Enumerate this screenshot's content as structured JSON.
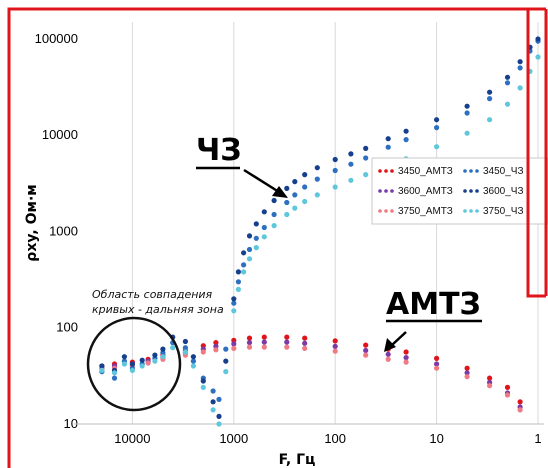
{
  "chart_data": {
    "type": "scatter",
    "xlabel": "F, Гц",
    "ylabel": "ρxy, Ом·м",
    "x_scale": "log",
    "x_reversed": true,
    "y_scale": "log",
    "xlim": [
      1,
      30000
    ],
    "ylim": [
      10,
      150000
    ],
    "x_ticks": [
      {
        "v": 10000,
        "label": "10000"
      },
      {
        "v": 1000,
        "label": "1000"
      },
      {
        "v": 100,
        "label": "100"
      },
      {
        "v": 10,
        "label": "10"
      },
      {
        "v": 1,
        "label": "1"
      }
    ],
    "y_ticks": [
      {
        "v": 100000,
        "label": "100000"
      },
      {
        "v": 10000,
        "label": "10000"
      },
      {
        "v": 1000,
        "label": "1000"
      },
      {
        "v": 100,
        "label": "100"
      },
      {
        "v": 10,
        "label": "10"
      }
    ],
    "grid": {
      "x": true,
      "y": false
    },
    "legend_position": "right",
    "series": [
      {
        "name": "3450_АМТЗ",
        "color": "#e0141b",
        "points": [
          [
            20000,
            40
          ],
          [
            15000,
            42
          ],
          [
            10000,
            44
          ],
          [
            7000,
            47
          ],
          [
            5000,
            52
          ],
          [
            3000,
            58
          ],
          [
            2000,
            65
          ],
          [
            1500,
            70
          ],
          [
            1000,
            74
          ],
          [
            700,
            78
          ],
          [
            500,
            80
          ],
          [
            300,
            80
          ],
          [
            200,
            78
          ],
          [
            100,
            73
          ],
          [
            50,
            66
          ],
          [
            30,
            60
          ],
          [
            20,
            56
          ],
          [
            10,
            48
          ],
          [
            5,
            38
          ],
          [
            3,
            30
          ],
          [
            2,
            24
          ],
          [
            1.5,
            17
          ]
        ]
      },
      {
        "name": "3600_АМТЗ",
        "color": "#7b3aa6",
        "points": [
          [
            20000,
            38
          ],
          [
            15000,
            40
          ],
          [
            10000,
            42
          ],
          [
            7000,
            45
          ],
          [
            5000,
            49
          ],
          [
            3000,
            55
          ],
          [
            2000,
            60
          ],
          [
            1500,
            64
          ],
          [
            1000,
            68
          ],
          [
            700,
            70
          ],
          [
            500,
            71
          ],
          [
            300,
            71
          ],
          [
            200,
            69
          ],
          [
            100,
            64
          ],
          [
            50,
            58
          ],
          [
            30,
            53
          ],
          [
            20,
            49
          ],
          [
            10,
            42
          ],
          [
            5,
            34
          ],
          [
            3,
            27
          ],
          [
            2,
            21
          ],
          [
            1.5,
            15
          ]
        ]
      },
      {
        "name": "3750_АМТЗ",
        "color": "#f07a84",
        "points": [
          [
            20000,
            37
          ],
          [
            15000,
            38
          ],
          [
            10000,
            40
          ],
          [
            7000,
            43
          ],
          [
            5000,
            47
          ],
          [
            3000,
            52
          ],
          [
            2000,
            56
          ],
          [
            1500,
            59
          ],
          [
            1000,
            61
          ],
          [
            700,
            63
          ],
          [
            500,
            63
          ],
          [
            300,
            63
          ],
          [
            200,
            61
          ],
          [
            100,
            57
          ],
          [
            50,
            52
          ],
          [
            30,
            47
          ],
          [
            20,
            44
          ],
          [
            10,
            38
          ],
          [
            5,
            31
          ],
          [
            3,
            25
          ],
          [
            2,
            20
          ],
          [
            1.5,
            14
          ]
        ]
      },
      {
        "name": "3450_ЧЗ",
        "color": "#2d6fc0",
        "points": [
          [
            20000,
            35
          ],
          [
            15000,
            30
          ],
          [
            12000,
            45
          ],
          [
            10000,
            38
          ],
          [
            8000,
            42
          ],
          [
            6000,
            48
          ],
          [
            5000,
            55
          ],
          [
            4000,
            70
          ],
          [
            3000,
            62
          ],
          [
            2500,
            45
          ],
          [
            2000,
            30
          ],
          [
            1600,
            22
          ],
          [
            1400,
            18
          ],
          [
            1200,
            60
          ],
          [
            1000,
            180
          ],
          [
            900,
            300
          ],
          [
            800,
            450
          ],
          [
            700,
            650
          ],
          [
            600,
            850
          ],
          [
            500,
            1100
          ],
          [
            400,
            1500
          ],
          [
            300,
            2000
          ],
          [
            250,
            2400
          ],
          [
            200,
            2900
          ],
          [
            150,
            3500
          ],
          [
            100,
            4300
          ],
          [
            70,
            5000
          ],
          [
            50,
            5800
          ],
          [
            30,
            7500
          ],
          [
            20,
            9000
          ],
          [
            10,
            12000
          ],
          [
            5,
            17000
          ],
          [
            3,
            24000
          ],
          [
            2,
            35000
          ],
          [
            1.5,
            50000
          ],
          [
            1.2,
            75000
          ],
          [
            1,
            95000
          ]
        ]
      },
      {
        "name": "3600_ЧЗ",
        "color": "#16408c",
        "points": [
          [
            20000,
            40
          ],
          [
            15000,
            36
          ],
          [
            12000,
            50
          ],
          [
            10000,
            42
          ],
          [
            8000,
            46
          ],
          [
            6000,
            52
          ],
          [
            5000,
            60
          ],
          [
            4000,
            80
          ],
          [
            3000,
            72
          ],
          [
            2500,
            50
          ],
          [
            2000,
            28
          ],
          [
            1600,
            17
          ],
          [
            1400,
            12
          ],
          [
            1200,
            45
          ],
          [
            1000,
            200
          ],
          [
            900,
            380
          ],
          [
            800,
            600
          ],
          [
            700,
            900
          ],
          [
            600,
            1200
          ],
          [
            500,
            1600
          ],
          [
            400,
            2100
          ],
          [
            300,
            2800
          ],
          [
            250,
            3300
          ],
          [
            200,
            3900
          ],
          [
            150,
            4600
          ],
          [
            100,
            5600
          ],
          [
            70,
            6400
          ],
          [
            50,
            7300
          ],
          [
            30,
            9200
          ],
          [
            20,
            11000
          ],
          [
            10,
            14500
          ],
          [
            5,
            20000
          ],
          [
            3,
            28000
          ],
          [
            2,
            40000
          ],
          [
            1.5,
            58000
          ],
          [
            1.2,
            82000
          ],
          [
            1,
            100000
          ]
        ]
      },
      {
        "name": "3750_ЧЗ",
        "color": "#5ec7dc",
        "points": [
          [
            20000,
            36
          ],
          [
            15000,
            34
          ],
          [
            12000,
            42
          ],
          [
            10000,
            36
          ],
          [
            8000,
            40
          ],
          [
            6000,
            45
          ],
          [
            5000,
            50
          ],
          [
            4000,
            62
          ],
          [
            3000,
            56
          ],
          [
            2500,
            40
          ],
          [
            2000,
            24
          ],
          [
            1600,
            14
          ],
          [
            1400,
            10
          ],
          [
            1200,
            35
          ],
          [
            1000,
            150
          ],
          [
            900,
            250
          ],
          [
            800,
            380
          ],
          [
            700,
            520
          ],
          [
            600,
            680
          ],
          [
            500,
            880
          ],
          [
            400,
            1150
          ],
          [
            300,
            1500
          ],
          [
            250,
            1750
          ],
          [
            200,
            2050
          ],
          [
            150,
            2400
          ],
          [
            100,
            2900
          ],
          [
            70,
            3400
          ],
          [
            50,
            3900
          ],
          [
            30,
            4800
          ],
          [
            20,
            5700
          ],
          [
            10,
            7600
          ],
          [
            5,
            10500
          ],
          [
            3,
            14500
          ],
          [
            2,
            21000
          ],
          [
            1.5,
            31000
          ],
          [
            1.2,
            46000
          ],
          [
            1,
            65000
          ]
        ]
      }
    ],
    "annotations": [
      {
        "id": "cz",
        "text": "ЧЗ"
      },
      {
        "id": "amtz",
        "text": "АМТЗ"
      },
      {
        "id": "note",
        "lines": [
          "Область совпадения",
          "кривых - дальняя зона"
        ]
      }
    ]
  }
}
